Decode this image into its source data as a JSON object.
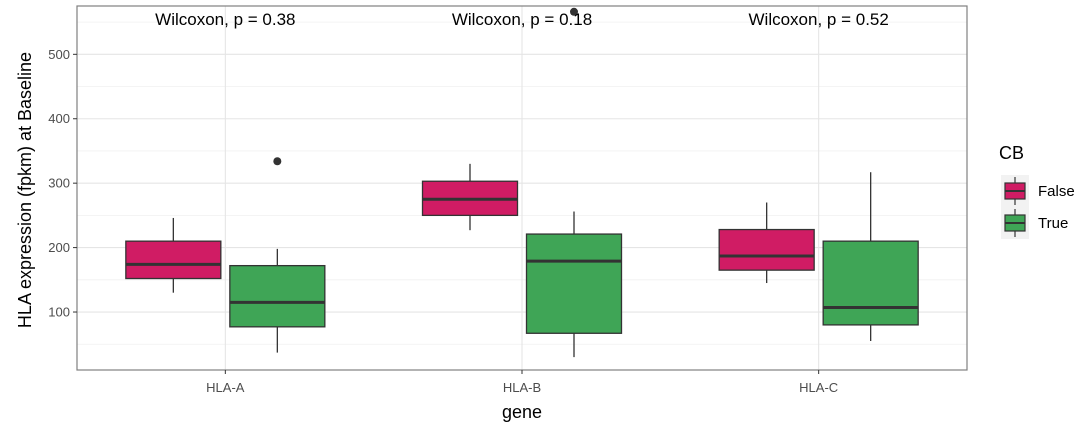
{
  "chart_data": {
    "type": "boxplot",
    "title": "",
    "xlabel": "gene",
    "ylabel": "HLA expression (fpkm) at Baseline",
    "ylim": [
      10,
      575
    ],
    "yticks": [
      100,
      200,
      300,
      400,
      500
    ],
    "ytick_labels": [
      "100",
      "200",
      "300",
      "400",
      "500"
    ],
    "categories": [
      "HLA-A",
      "HLA-B",
      "HLA-C"
    ],
    "grid": true,
    "legend": {
      "title": "CB",
      "position": "right",
      "items": [
        {
          "label": "False",
          "color": "#d01c64"
        },
        {
          "label": "True",
          "color": "#3fa556"
        }
      ]
    },
    "annotations": [
      "Wilcoxon, p = 0.38",
      "Wilcoxon, p = 0.18",
      "Wilcoxon, p = 0.52"
    ],
    "series": [
      {
        "group": "False",
        "color": "#d01c64",
        "boxes": [
          {
            "min": 130,
            "q1": 152,
            "median": 174,
            "q3": 210,
            "max": 246,
            "outliers": []
          },
          {
            "min": 227,
            "q1": 250,
            "median": 275,
            "q3": 303,
            "max": 330,
            "outliers": []
          },
          {
            "min": 145,
            "q1": 165,
            "median": 187,
            "q3": 228,
            "max": 270,
            "outliers": []
          }
        ]
      },
      {
        "group": "True",
        "color": "#3fa556",
        "boxes": [
          {
            "min": 37,
            "q1": 77,
            "median": 115,
            "q3": 172,
            "max": 198,
            "outliers": [
              334
            ]
          },
          {
            "min": 30,
            "q1": 67,
            "median": 179,
            "q3": 221,
            "max": 256,
            "outliers": [
              566
            ]
          },
          {
            "min": 55,
            "q1": 80,
            "median": 107,
            "q3": 210,
            "max": 317,
            "outliers": []
          }
        ]
      }
    ]
  }
}
